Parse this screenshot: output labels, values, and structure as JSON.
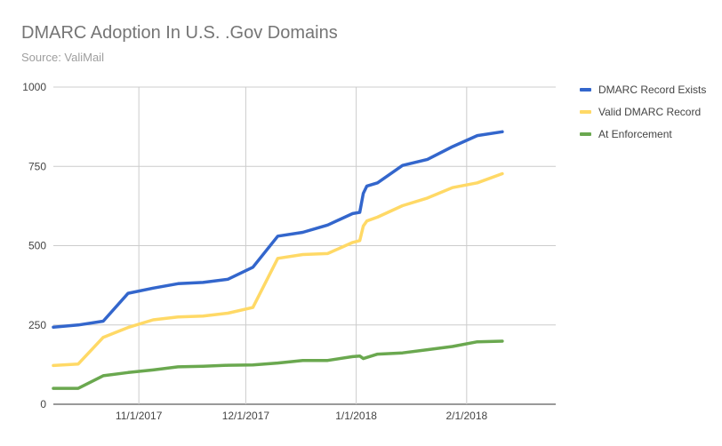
{
  "chart_data": {
    "type": "line",
    "title": "DMARC Adoption In U.S. .Gov Domains",
    "subtitle": "Source: ValiMail",
    "xlabel": "",
    "ylabel": "",
    "ylim": [
      0,
      1000
    ],
    "yticks": [
      0,
      250,
      500,
      750,
      1000
    ],
    "xlim": [
      "2017-10-08",
      "2018-02-26"
    ],
    "xticks": [
      {
        "date": "2017-11-01",
        "label": "11/1/2017"
      },
      {
        "date": "2017-12-01",
        "label": "12/1/2017"
      },
      {
        "date": "2018-01-01",
        "label": "1/1/2018"
      },
      {
        "date": "2018-02-01",
        "label": "2/1/2018"
      }
    ],
    "grid": true,
    "legend_position": "right",
    "series": [
      {
        "name": "DMARC Record Exists",
        "color": "#3366cc",
        "points": [
          [
            "2017-10-08",
            243
          ],
          [
            "2017-10-15",
            250
          ],
          [
            "2017-10-22",
            262
          ],
          [
            "2017-10-29",
            350
          ],
          [
            "2017-11-05",
            366
          ],
          [
            "2017-11-12",
            380
          ],
          [
            "2017-11-19",
            384
          ],
          [
            "2017-11-26",
            394
          ],
          [
            "2017-12-03",
            432
          ],
          [
            "2017-12-10",
            530
          ],
          [
            "2017-12-17",
            542
          ],
          [
            "2017-12-24",
            565
          ],
          [
            "2017-12-31",
            601
          ],
          [
            "2018-01-02",
            605
          ],
          [
            "2018-01-03",
            665
          ],
          [
            "2018-01-04",
            688
          ],
          [
            "2018-01-07",
            698
          ],
          [
            "2018-01-14",
            753
          ],
          [
            "2018-01-21",
            772
          ],
          [
            "2018-01-28",
            812
          ],
          [
            "2018-02-04",
            847
          ],
          [
            "2018-02-11",
            859
          ]
        ]
      },
      {
        "name": "Valid DMARC Record",
        "color": "#ffd966",
        "points": [
          [
            "2017-10-08",
            122
          ],
          [
            "2017-10-15",
            127
          ],
          [
            "2017-10-22",
            211
          ],
          [
            "2017-10-29",
            242
          ],
          [
            "2017-11-05",
            266
          ],
          [
            "2017-11-12",
            275
          ],
          [
            "2017-11-19",
            278
          ],
          [
            "2017-11-26",
            287
          ],
          [
            "2017-12-03",
            305
          ],
          [
            "2017-12-10",
            460
          ],
          [
            "2017-12-17",
            472
          ],
          [
            "2017-12-24",
            475
          ],
          [
            "2017-12-31",
            510
          ],
          [
            "2018-01-02",
            516
          ],
          [
            "2018-01-03",
            562
          ],
          [
            "2018-01-04",
            578
          ],
          [
            "2018-01-07",
            590
          ],
          [
            "2018-01-14",
            626
          ],
          [
            "2018-01-21",
            650
          ],
          [
            "2018-01-28",
            683
          ],
          [
            "2018-02-04",
            698
          ],
          [
            "2018-02-11",
            727
          ]
        ]
      },
      {
        "name": "At Enforcement",
        "color": "#6aa84f",
        "points": [
          [
            "2017-10-08",
            50
          ],
          [
            "2017-10-15",
            50
          ],
          [
            "2017-10-22",
            90
          ],
          [
            "2017-10-29",
            100
          ],
          [
            "2017-11-05",
            108
          ],
          [
            "2017-11-12",
            118
          ],
          [
            "2017-11-19",
            120
          ],
          [
            "2017-11-26",
            123
          ],
          [
            "2017-12-03",
            124
          ],
          [
            "2017-12-10",
            130
          ],
          [
            "2017-12-17",
            138
          ],
          [
            "2017-12-24",
            138
          ],
          [
            "2017-12-31",
            150
          ],
          [
            "2018-01-02",
            152
          ],
          [
            "2018-01-03",
            144
          ],
          [
            "2018-01-07",
            158
          ],
          [
            "2018-01-14",
            162
          ],
          [
            "2018-01-21",
            172
          ],
          [
            "2018-01-28",
            182
          ],
          [
            "2018-02-04",
            197
          ],
          [
            "2018-02-11",
            199
          ]
        ]
      }
    ]
  }
}
